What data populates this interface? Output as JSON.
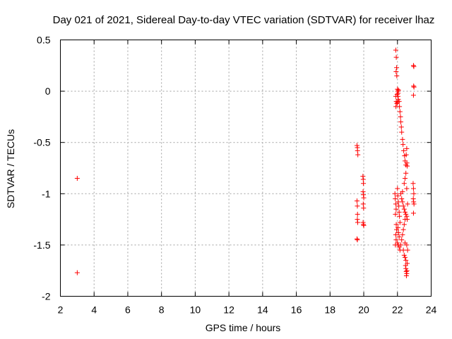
{
  "chart_data": {
    "type": "scatter",
    "title": "Day 021 of 2021, Sidereal Day-to-day VTEC variation (SDTVAR) for receiver lhaz",
    "xlabel": "GPS time / hours",
    "ylabel": "SDTVAR / TECUs",
    "xlim": [
      2,
      24
    ],
    "ylim": [
      -2,
      0.5
    ],
    "x_ticks": [
      2,
      4,
      6,
      8,
      10,
      12,
      14,
      16,
      18,
      20,
      22,
      24
    ],
    "y_ticks": [
      -2,
      -1.5,
      -1,
      -0.5,
      0,
      0.5
    ],
    "x_tick_labels": [
      "2",
      "4",
      "6",
      "8",
      "10",
      "12",
      "14",
      "16",
      "18",
      "20",
      "22",
      "24"
    ],
    "y_tick_labels": [
      "-2",
      "-1.5",
      "-1",
      "-0.5",
      "0",
      "0.5"
    ],
    "grid": true,
    "marker": "+",
    "series": [
      {
        "name": "SDTVAR",
        "color": "#ff0000",
        "points": [
          [
            3.0,
            -0.85
          ],
          [
            3.0,
            -1.77
          ],
          [
            19.6,
            -0.53
          ],
          [
            19.62,
            -0.55
          ],
          [
            19.63,
            -0.58
          ],
          [
            19.65,
            -0.62
          ],
          [
            19.6,
            -1.07
          ],
          [
            19.62,
            -1.12
          ],
          [
            19.63,
            -1.2
          ],
          [
            19.62,
            -1.25
          ],
          [
            19.64,
            -1.28
          ],
          [
            19.6,
            -1.44
          ],
          [
            19.62,
            -1.45
          ],
          [
            19.95,
            -0.83
          ],
          [
            19.97,
            -0.86
          ],
          [
            19.98,
            -0.9
          ],
          [
            19.96,
            -0.98
          ],
          [
            19.98,
            -1.01
          ],
          [
            20.0,
            -1.04
          ],
          [
            19.97,
            -1.1
          ],
          [
            19.99,
            -1.14
          ],
          [
            19.96,
            -1.28
          ],
          [
            19.98,
            -1.3
          ],
          [
            20.0,
            -1.31
          ],
          [
            21.9,
            0.4
          ],
          [
            21.93,
            0.33
          ],
          [
            21.95,
            0.23
          ],
          [
            21.92,
            0.19
          ],
          [
            21.96,
            0.15
          ],
          [
            21.9,
            -0.05
          ],
          [
            21.93,
            -0.1
          ],
          [
            21.97,
            -0.12
          ],
          [
            21.91,
            -0.15
          ],
          [
            22.0,
            0.02
          ],
          [
            22.02,
            0.0
          ],
          [
            22.04,
            -0.02
          ],
          [
            22.03,
            -0.05
          ],
          [
            22.05,
            -0.08
          ],
          [
            22.0,
            -0.11
          ],
          [
            22.06,
            0.01
          ],
          [
            21.98,
            -0.03
          ],
          [
            22.1,
            -0.1
          ],
          [
            22.12,
            -0.15
          ],
          [
            22.15,
            -0.2
          ],
          [
            22.18,
            -0.25
          ],
          [
            22.2,
            -0.3
          ],
          [
            22.23,
            -0.35
          ],
          [
            22.25,
            -0.4
          ],
          [
            22.3,
            -0.47
          ],
          [
            22.33,
            -0.52
          ],
          [
            22.37,
            -0.58
          ],
          [
            22.42,
            -0.63
          ],
          [
            22.45,
            -0.68
          ],
          [
            22.5,
            -0.72
          ],
          [
            22.55,
            -0.56
          ],
          [
            22.52,
            -0.62
          ],
          [
            22.56,
            -0.7
          ],
          [
            22.58,
            -0.73
          ],
          [
            21.85,
            -1.0
          ],
          [
            21.87,
            -1.05
          ],
          [
            21.9,
            -1.1
          ],
          [
            21.92,
            -1.15
          ],
          [
            21.88,
            -1.2
          ],
          [
            21.93,
            -1.3
          ],
          [
            21.95,
            -1.35
          ],
          [
            21.9,
            -1.4
          ],
          [
            21.92,
            -1.45
          ],
          [
            21.88,
            -1.5
          ],
          [
            22.0,
            -0.95
          ],
          [
            22.02,
            -1.02
          ],
          [
            22.05,
            -1.08
          ],
          [
            22.08,
            -1.12
          ],
          [
            22.1,
            -1.18
          ],
          [
            22.12,
            -1.22
          ],
          [
            22.15,
            -1.28
          ],
          [
            22.03,
            -1.33
          ],
          [
            22.06,
            -1.38
          ],
          [
            22.1,
            -1.42
          ],
          [
            22.0,
            -1.48
          ],
          [
            22.05,
            -1.5
          ],
          [
            22.1,
            -1.52
          ],
          [
            22.15,
            -1.55
          ],
          [
            22.2,
            -1.5
          ],
          [
            22.25,
            -1.45
          ],
          [
            22.3,
            -1.4
          ],
          [
            22.35,
            -1.35
          ],
          [
            22.4,
            -1.3
          ],
          [
            22.45,
            -1.25
          ],
          [
            22.2,
            -1.0
          ],
          [
            22.25,
            -1.05
          ],
          [
            22.3,
            -1.08
          ],
          [
            22.35,
            -1.12
          ],
          [
            22.4,
            -1.15
          ],
          [
            22.45,
            -1.18
          ],
          [
            22.5,
            -1.2
          ],
          [
            22.55,
            -1.22
          ],
          [
            22.3,
            -0.98
          ],
          [
            22.4,
            -0.9
          ],
          [
            22.45,
            -0.85
          ],
          [
            22.5,
            -0.8
          ],
          [
            22.55,
            -0.95
          ],
          [
            22.6,
            -1.1
          ],
          [
            22.58,
            -1.25
          ],
          [
            22.35,
            -1.55
          ],
          [
            22.4,
            -1.6
          ],
          [
            22.45,
            -1.62
          ],
          [
            22.5,
            -1.65
          ],
          [
            22.48,
            -1.7
          ],
          [
            22.5,
            -1.73
          ],
          [
            22.52,
            -1.76
          ],
          [
            22.55,
            -1.78
          ],
          [
            22.53,
            -1.8
          ],
          [
            22.56,
            -1.75
          ],
          [
            22.58,
            -1.68
          ],
          [
            22.6,
            -1.55
          ],
          [
            22.55,
            -1.5
          ],
          [
            22.45,
            -1.48
          ],
          [
            22.95,
            0.25
          ],
          [
            22.97,
            0.24
          ],
          [
            22.96,
            0.05
          ],
          [
            22.98,
            0.04
          ],
          [
            22.95,
            -0.04
          ],
          [
            22.93,
            -0.9
          ],
          [
            22.95,
            -0.95
          ],
          [
            22.97,
            -1.0
          ],
          [
            22.94,
            -1.05
          ],
          [
            22.96,
            -1.08
          ],
          [
            22.98,
            -1.1
          ],
          [
            22.95,
            -1.19
          ]
        ]
      }
    ]
  }
}
